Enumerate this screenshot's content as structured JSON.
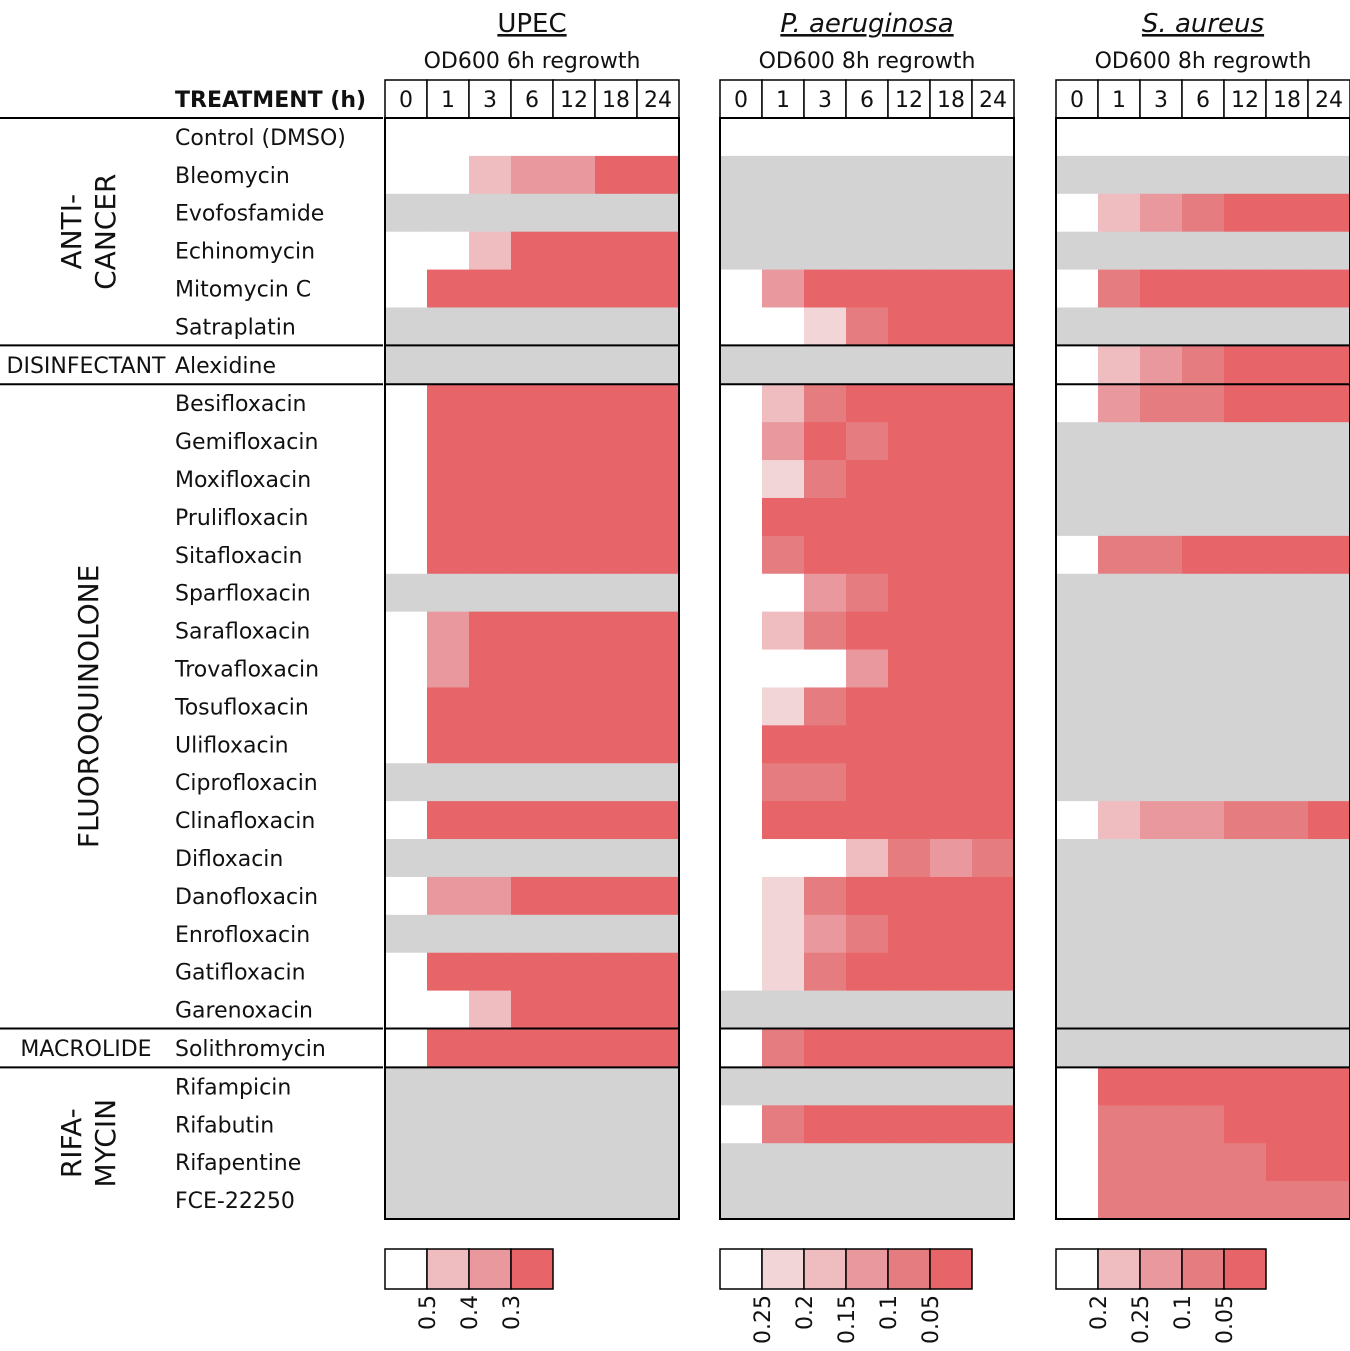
{
  "chart_data": {
    "type": "heatmap",
    "treatment_header": "TREATMENT (h)",
    "time_points": [
      "0",
      "1",
      "3",
      "6",
      "12",
      "18",
      "24"
    ],
    "groups": [
      {
        "label": "ANTI-CANCER",
        "label_lines": [
          "ANTI-",
          "CANCER"
        ],
        "orientation": "vertical",
        "rows": [
          "Control (DMSO)",
          "Bleomycin",
          "Evofosfamide",
          "Echinomycin",
          "Mitomycin C",
          "Satraplatin"
        ]
      },
      {
        "label": "DISINFECTANT",
        "label_lines": [
          "DISINFECTANT"
        ],
        "orientation": "horizontal",
        "rows": [
          "Alexidine"
        ]
      },
      {
        "label": "FLUOROQUINOLONE",
        "label_lines": [
          "FLUOROQUINOLONE"
        ],
        "orientation": "vertical",
        "rows": [
          "Besifloxacin",
          "Gemifloxacin",
          "Moxifloxacin",
          "Prulifloxacin",
          "Sitafloxacin",
          "Sparfloxacin",
          "Sarafloxacin",
          "Trovafloxacin",
          "Tosufloxacin",
          "Ulifloxacin",
          "Ciprofloxacin",
          "Clinafloxacin",
          "Difloxacin",
          "Danofloxacin",
          "Enrofloxacin",
          "Gatifloxacin",
          "Garenoxacin"
        ]
      },
      {
        "label": "MACROLIDE",
        "label_lines": [
          "MACROLIDE"
        ],
        "orientation": "horizontal",
        "rows": [
          "Solithromycin"
        ]
      },
      {
        "label": "RIFAMYCIN",
        "label_lines": [
          "RIFA-",
          "MYCIN"
        ],
        "orientation": "vertical",
        "rows": [
          "Rifampicin",
          "Rifabutin",
          "Rifapentine",
          "FCE-22250"
        ]
      }
    ],
    "level_colors": [
      "#ffffff",
      "#f2d5d6",
      "#efbcc0",
      "#e9999d",
      "#e57d80",
      "#e76468"
    ],
    "na_color": "#d3d3d3",
    "cell_encoding": "per cell: 0 = white (no reduction), 1-5 = increasing red shade per panel legend, null = grey (not tested)",
    "panels": [
      {
        "organism": "UPEC",
        "italic": false,
        "subtitle": "OD600 6h regrowth",
        "legend_levels": [
          0,
          2,
          3,
          5
        ],
        "legend_labels": [
          "0.5",
          "0.4",
          "0.3"
        ],
        "cells": [
          [
            0,
            0,
            0,
            0,
            0,
            0,
            0
          ],
          [
            0,
            0,
            2,
            3,
            3,
            5,
            5
          ],
          [
            null,
            null,
            null,
            null,
            null,
            null,
            null
          ],
          [
            0,
            0,
            2,
            5,
            5,
            5,
            5
          ],
          [
            0,
            5,
            5,
            5,
            5,
            5,
            5
          ],
          [
            null,
            null,
            null,
            null,
            null,
            null,
            null
          ],
          [
            null,
            null,
            null,
            null,
            null,
            null,
            null
          ],
          [
            0,
            5,
            5,
            5,
            5,
            5,
            5
          ],
          [
            0,
            5,
            5,
            5,
            5,
            5,
            5
          ],
          [
            0,
            5,
            5,
            5,
            5,
            5,
            5
          ],
          [
            0,
            5,
            5,
            5,
            5,
            5,
            5
          ],
          [
            0,
            5,
            5,
            5,
            5,
            5,
            5
          ],
          [
            null,
            null,
            null,
            null,
            null,
            null,
            null
          ],
          [
            0,
            3,
            5,
            5,
            5,
            5,
            5
          ],
          [
            0,
            3,
            5,
            5,
            5,
            5,
            5
          ],
          [
            0,
            5,
            5,
            5,
            5,
            5,
            5
          ],
          [
            0,
            5,
            5,
            5,
            5,
            5,
            5
          ],
          [
            null,
            null,
            null,
            null,
            null,
            null,
            null
          ],
          [
            0,
            5,
            5,
            5,
            5,
            5,
            5
          ],
          [
            null,
            null,
            null,
            null,
            null,
            null,
            null
          ],
          [
            0,
            3,
            3,
            5,
            5,
            5,
            5
          ],
          [
            null,
            null,
            null,
            null,
            null,
            null,
            null
          ],
          [
            0,
            5,
            5,
            5,
            5,
            5,
            5
          ],
          [
            0,
            0,
            2,
            5,
            5,
            5,
            5
          ],
          [
            0,
            5,
            5,
            5,
            5,
            5,
            5
          ],
          [
            null,
            null,
            null,
            null,
            null,
            null,
            null
          ],
          [
            null,
            null,
            null,
            null,
            null,
            null,
            null
          ],
          [
            null,
            null,
            null,
            null,
            null,
            null,
            null
          ],
          [
            null,
            null,
            null,
            null,
            null,
            null,
            null
          ]
        ]
      },
      {
        "organism": "P. aeruginosa",
        "italic": true,
        "subtitle": "OD600 8h regrowth",
        "legend_levels": [
          0,
          1,
          2,
          3,
          4,
          5
        ],
        "legend_labels": [
          "0.25",
          "0.2",
          "0.15",
          "0.1",
          "0.05"
        ],
        "cells": [
          [
            0,
            0,
            0,
            0,
            0,
            0,
            0
          ],
          [
            null,
            null,
            null,
            null,
            null,
            null,
            null
          ],
          [
            null,
            null,
            null,
            null,
            null,
            null,
            null
          ],
          [
            null,
            null,
            null,
            null,
            null,
            null,
            null
          ],
          [
            0,
            3,
            5,
            5,
            5,
            5,
            5
          ],
          [
            0,
            0,
            1,
            4,
            5,
            5,
            5
          ],
          [
            null,
            null,
            null,
            null,
            null,
            null,
            null
          ],
          [
            0,
            2,
            4,
            5,
            5,
            5,
            5
          ],
          [
            0,
            3,
            5,
            4,
            5,
            5,
            5
          ],
          [
            0,
            1,
            4,
            5,
            5,
            5,
            5
          ],
          [
            0,
            5,
            5,
            5,
            5,
            5,
            5
          ],
          [
            0,
            4,
            5,
            5,
            5,
            5,
            5
          ],
          [
            0,
            0,
            3,
            4,
            5,
            5,
            5
          ],
          [
            0,
            2,
            4,
            5,
            5,
            5,
            5
          ],
          [
            0,
            0,
            0,
            3,
            5,
            5,
            5
          ],
          [
            0,
            1,
            4,
            5,
            5,
            5,
            5
          ],
          [
            0,
            5,
            5,
            5,
            5,
            5,
            5
          ],
          [
            0,
            4,
            4,
            5,
            5,
            5,
            5
          ],
          [
            0,
            5,
            5,
            5,
            5,
            5,
            5
          ],
          [
            0,
            0,
            0,
            2,
            4,
            3,
            4
          ],
          [
            0,
            1,
            4,
            5,
            5,
            5,
            5
          ],
          [
            0,
            1,
            3,
            4,
            5,
            5,
            5
          ],
          [
            0,
            1,
            4,
            5,
            5,
            5,
            5
          ],
          [
            null,
            null,
            null,
            null,
            null,
            null,
            null
          ],
          [
            0,
            4,
            5,
            5,
            5,
            5,
            5
          ],
          [
            null,
            null,
            null,
            null,
            null,
            null,
            null
          ],
          [
            0,
            4,
            5,
            5,
            5,
            5,
            5
          ],
          [
            null,
            null,
            null,
            null,
            null,
            null,
            null
          ],
          [
            null,
            null,
            null,
            null,
            null,
            null,
            null
          ]
        ]
      },
      {
        "organism": "S. aureus",
        "italic": true,
        "subtitle": "OD600 8h regrowth",
        "legend_levels": [
          0,
          2,
          3,
          4,
          5
        ],
        "legend_labels": [
          "0.2",
          "0.25",
          "0.1",
          "0.05"
        ],
        "cells": [
          [
            0,
            0,
            0,
            0,
            0,
            0,
            0
          ],
          [
            null,
            null,
            null,
            null,
            null,
            null,
            null
          ],
          [
            0,
            2,
            3,
            4,
            5,
            5,
            5
          ],
          [
            null,
            null,
            null,
            null,
            null,
            null,
            null
          ],
          [
            0,
            4,
            5,
            5,
            5,
            5,
            5
          ],
          [
            null,
            null,
            null,
            null,
            null,
            null,
            null
          ],
          [
            0,
            2,
            3,
            4,
            5,
            5,
            5
          ],
          [
            0,
            3,
            4,
            4,
            5,
            5,
            5
          ],
          [
            null,
            null,
            null,
            null,
            null,
            null,
            null
          ],
          [
            null,
            null,
            null,
            null,
            null,
            null,
            null
          ],
          [
            null,
            null,
            null,
            null,
            null,
            null,
            null
          ],
          [
            0,
            4,
            4,
            5,
            5,
            5,
            5
          ],
          [
            null,
            null,
            null,
            null,
            null,
            null,
            null
          ],
          [
            null,
            null,
            null,
            null,
            null,
            null,
            null
          ],
          [
            null,
            null,
            null,
            null,
            null,
            null,
            null
          ],
          [
            null,
            null,
            null,
            null,
            null,
            null,
            null
          ],
          [
            null,
            null,
            null,
            null,
            null,
            null,
            null
          ],
          [
            null,
            null,
            null,
            null,
            null,
            null,
            null
          ],
          [
            0,
            2,
            3,
            3,
            4,
            4,
            5
          ],
          [
            null,
            null,
            null,
            null,
            null,
            null,
            null
          ],
          [
            null,
            null,
            null,
            null,
            null,
            null,
            null
          ],
          [
            null,
            null,
            null,
            null,
            null,
            null,
            null
          ],
          [
            null,
            null,
            null,
            null,
            null,
            null,
            null
          ],
          [
            null,
            null,
            null,
            null,
            null,
            null,
            null
          ],
          [
            null,
            null,
            null,
            null,
            null,
            null,
            null
          ],
          [
            0,
            5,
            5,
            5,
            5,
            5,
            5
          ],
          [
            0,
            4,
            4,
            4,
            5,
            5,
            5
          ],
          [
            0,
            4,
            4,
            4,
            4,
            5,
            5
          ],
          [
            0,
            4,
            4,
            4,
            4,
            4,
            4
          ]
        ]
      }
    ]
  }
}
